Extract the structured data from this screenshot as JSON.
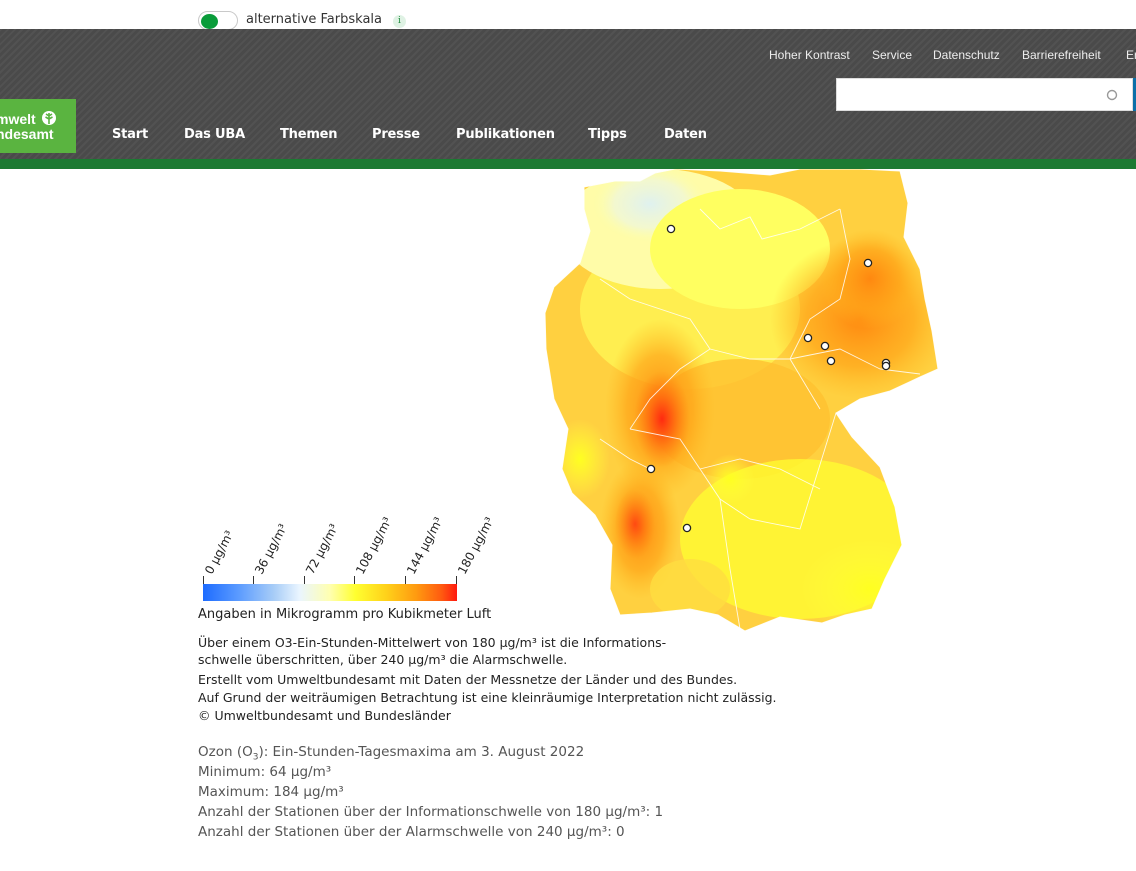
{
  "toggle": {
    "label": "alternative Farbskala",
    "info_glyph": "i",
    "state": "on"
  },
  "utility_links": [
    "Hoher Kontrast",
    "Service",
    "Datenschutz",
    "Barrierefreiheit",
    "En"
  ],
  "logo": {
    "line1": "mwelt",
    "line2": "ndesamt"
  },
  "nav": [
    "Start",
    "Das UBA",
    "Themen",
    "Presse",
    "Publikationen",
    "Tipps",
    "Daten"
  ],
  "search": {
    "placeholder": "",
    "icon": "search-icon"
  },
  "legend": {
    "ticks": [
      "0 µg/m³",
      "36 µg/m³",
      "72 µg/m³",
      "108 µg/m³",
      "144 µg/m³",
      "180 µg/m³"
    ],
    "unit_note": "Angaben in Mikrogramm pro Kubikmeter Luft"
  },
  "captions": [
    "Über einem O3-Ein-Stunden-Mittelwert von 180 µg/m³ ist die Informations-",
    "schwelle überschritten, über 240 µg/m³ die Alarmschwelle.",
    "Erstellt vom Umweltbundesamt mit Daten der Messnetze der Länder und des Bundes.",
    "Auf Grund der weiträumigen Betrachtung ist eine kleinräumige Interpretation nicht zulässig.",
    "© Umweltbundesamt und Bundesländer"
  ],
  "stats": {
    "title_pre": "Ozon (O",
    "title_sub": "3",
    "title_post": "): Ein-Stunden-Tagesmaxima am 3. August 2022",
    "minimum": "Minimum: 64 µg/m³",
    "maximum": "Maximum: 184 µg/m³",
    "info_threshold": "Anzahl der Stationen über der Informationschwelle von 180 µg/m³: 1",
    "alarm_threshold": "Anzahl der Stationen über der Alarmschwelle von 240 µg/m³: 0"
  },
  "colors": {
    "header_bg": "#4a4a4a",
    "brand_green": "#5ab440",
    "dark_green": "#1c7a32",
    "accent_blue": "#0b6fa8"
  }
}
